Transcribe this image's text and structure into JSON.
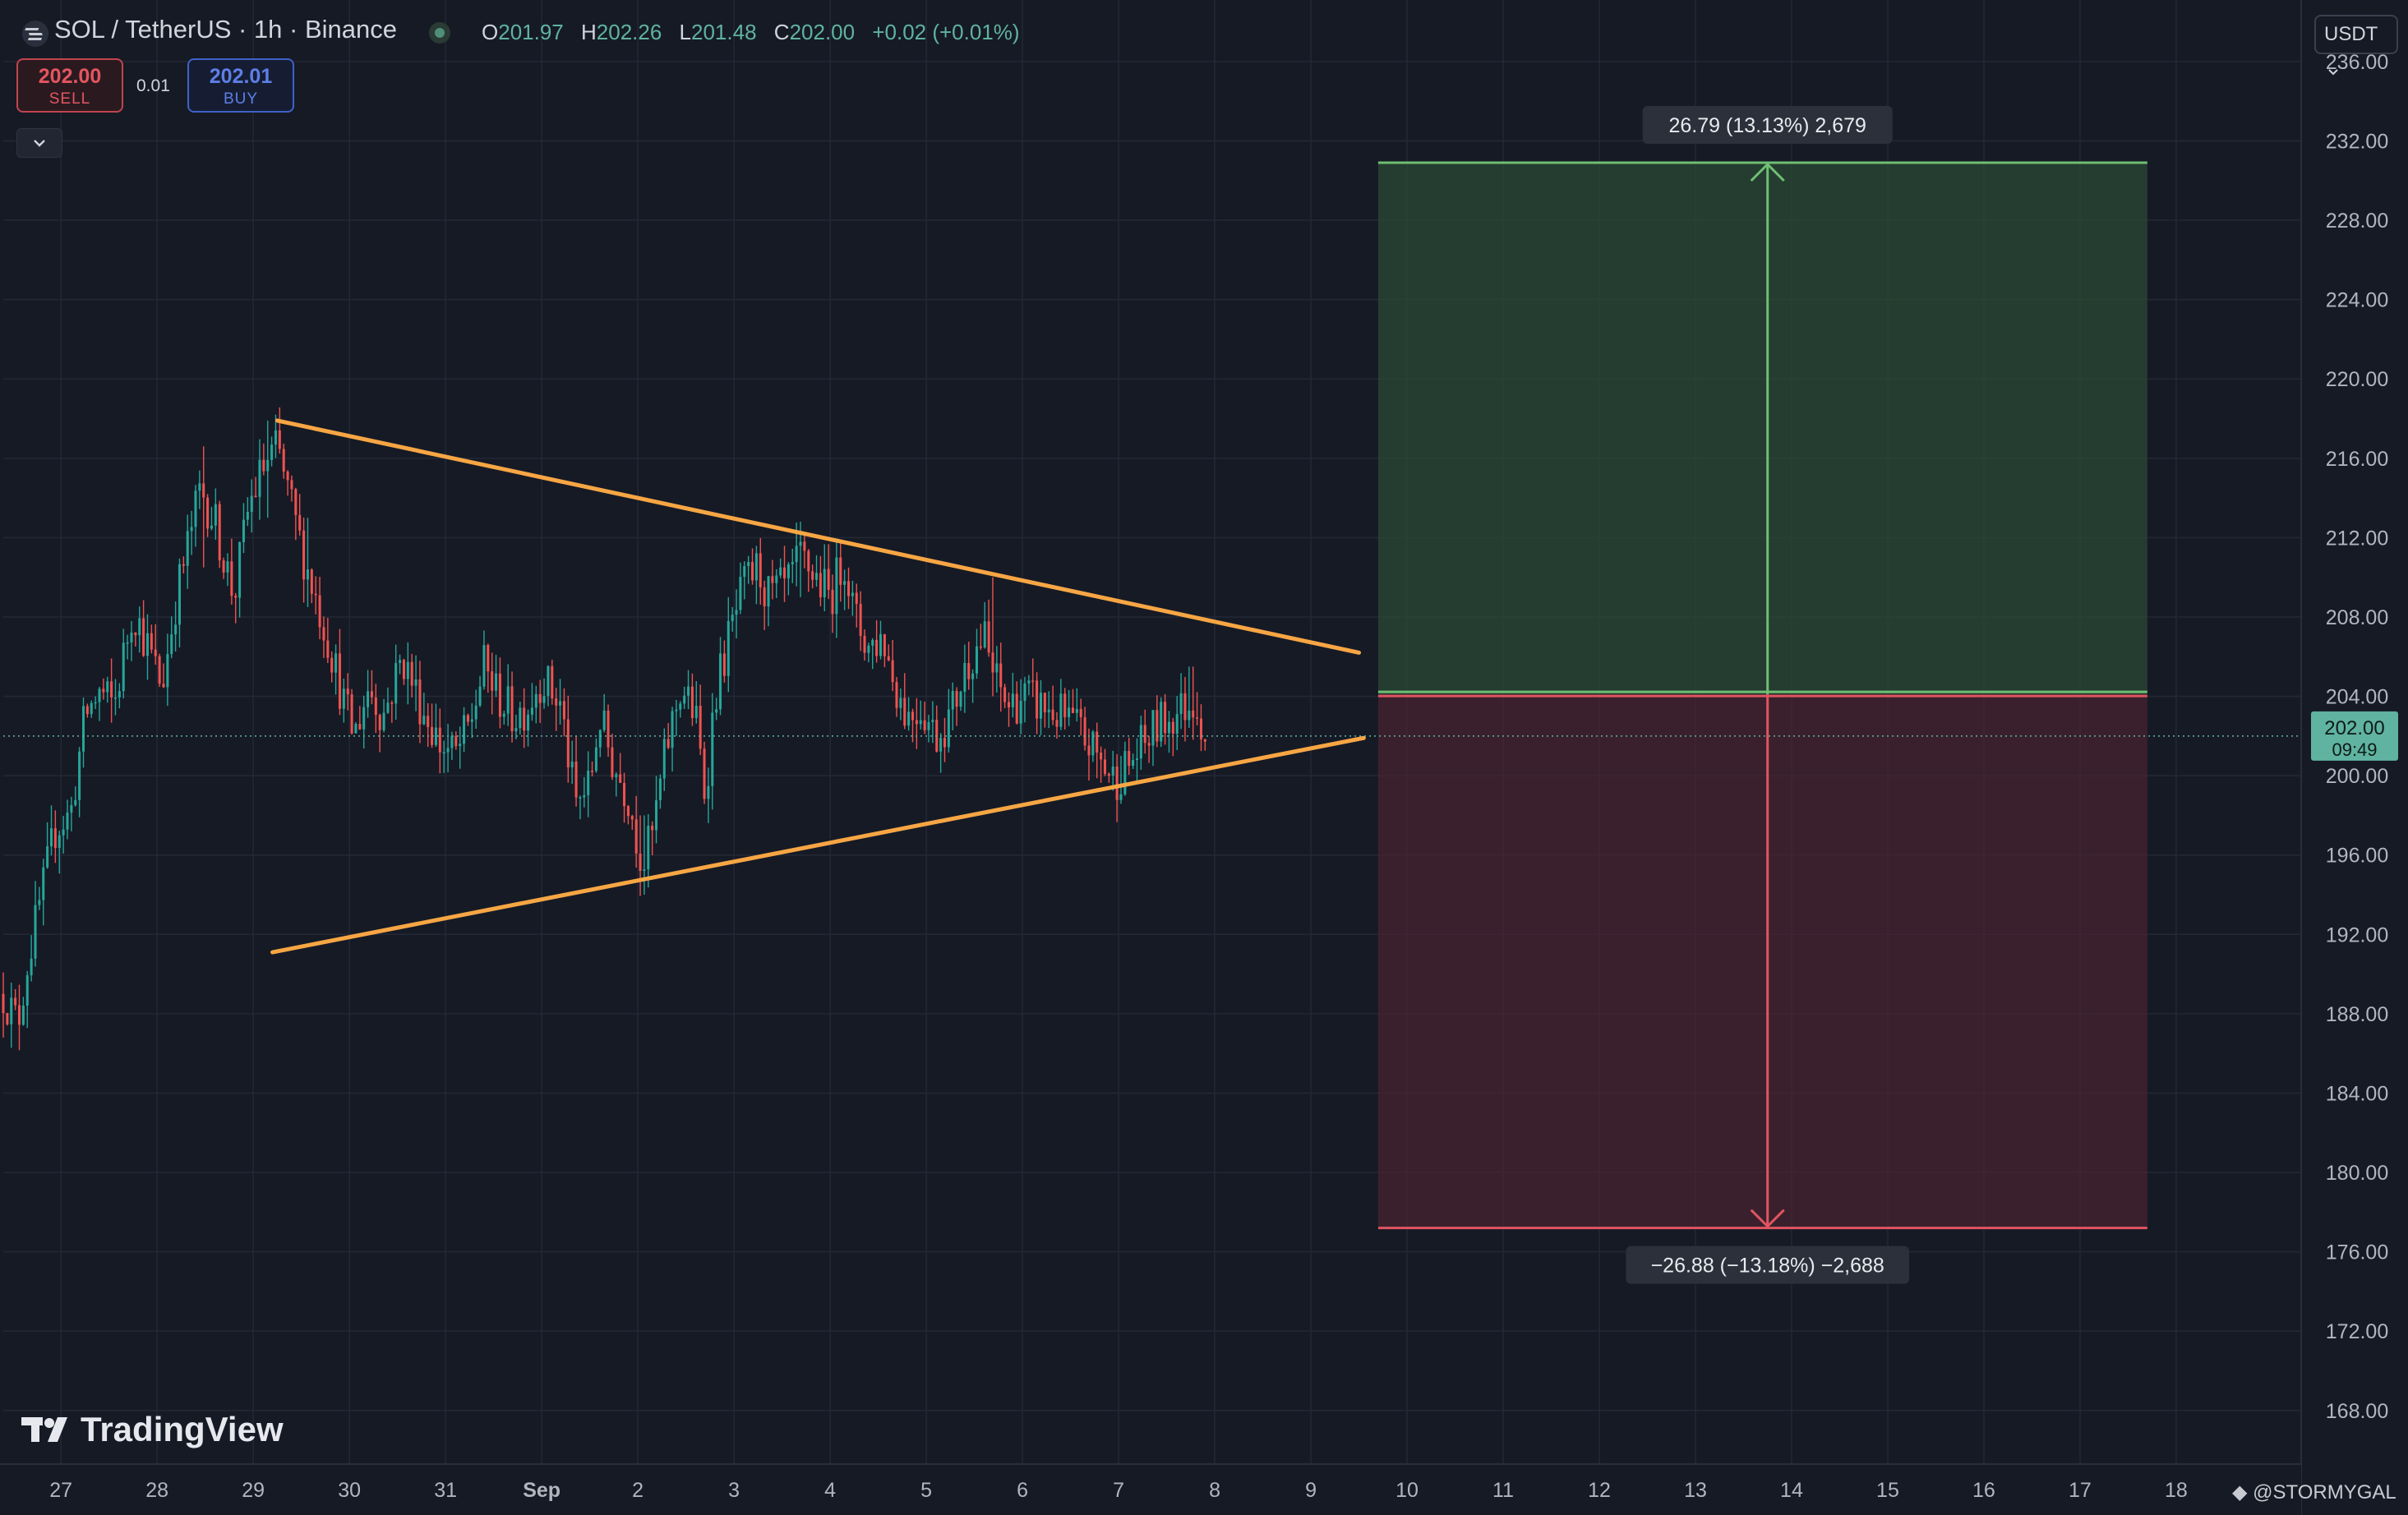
{
  "header": {
    "symbol_title": "SOL / TetherUS · 1h · Binance",
    "ohlc": [
      {
        "key": "O",
        "value": "201.97"
      },
      {
        "key": "H",
        "value": "202.26"
      },
      {
        "key": "L",
        "value": "201.48"
      },
      {
        "key": "C",
        "value": "202.00"
      }
    ],
    "change": "+0.02 (+0.01%)",
    "status_icon": "market-status-dot"
  },
  "trade": {
    "sell_price": "202.00",
    "sell_label": "SELL",
    "spread": "0.01",
    "buy_price": "202.01",
    "buy_label": "BUY",
    "collapse_icon": "chevron-down-icon"
  },
  "currency_selector": "USDT",
  "logo_text": "TradingView",
  "watermark": "@STORMYGAL",
  "colors": {
    "background": "#161a25",
    "candle_up": "#26a69a",
    "candle_down": "#ef5350",
    "trendline": "#f7a644",
    "target_zone": "#2b4a34",
    "stop_zone": "#4a2430",
    "price_tag": "#5fb3a0"
  },
  "chart_data": {
    "type": "candlestick",
    "symbol": "SOL/USDT",
    "interval": "1h",
    "y_axis": {
      "ticks": [
        "236.00",
        "232.00",
        "228.00",
        "224.00",
        "220.00",
        "216.00",
        "212.00",
        "208.00",
        "204.00",
        "200.00",
        "196.00",
        "192.00",
        "188.00",
        "184.00",
        "180.00",
        "176.00",
        "172.00",
        "168.00"
      ],
      "range": [
        165.3,
        239.1
      ]
    },
    "x_axis": {
      "ticks": [
        {
          "label": "27",
          "t": 0
        },
        {
          "label": "28",
          "t": 1
        },
        {
          "label": "29",
          "t": 2
        },
        {
          "label": "30",
          "t": 3
        },
        {
          "label": "31",
          "t": 4
        },
        {
          "label": "Sep",
          "t": 5,
          "bold": true
        },
        {
          "label": "2",
          "t": 6
        },
        {
          "label": "3",
          "t": 7
        },
        {
          "label": "4",
          "t": 8
        },
        {
          "label": "5",
          "t": 9
        },
        {
          "label": "6",
          "t": 10
        },
        {
          "label": "7",
          "t": 11
        },
        {
          "label": "8",
          "t": 12
        },
        {
          "label": "9",
          "t": 13
        },
        {
          "label": "10",
          "t": 14
        },
        {
          "label": "11",
          "t": 15
        },
        {
          "label": "12",
          "t": 16
        },
        {
          "label": "13",
          "t": 17
        },
        {
          "label": "14",
          "t": 18
        },
        {
          "label": "15",
          "t": 19
        },
        {
          "label": "16",
          "t": 20
        },
        {
          "label": "17",
          "t": 21
        },
        {
          "label": "18",
          "t": 22
        }
      ],
      "range": [
        -0.6,
        23.3
      ]
    },
    "price_path": [
      [
        -0.6,
        189.0
      ],
      [
        -0.45,
        187.5
      ],
      [
        -0.35,
        190.5
      ],
      [
        -0.2,
        194.0
      ],
      [
        -0.05,
        197.5
      ],
      [
        0.1,
        198.0
      ],
      [
        0.25,
        203.0
      ],
      [
        0.4,
        204.2
      ],
      [
        0.55,
        203.5
      ],
      [
        0.75,
        208.5
      ],
      [
        0.9,
        206.5
      ],
      [
        1.05,
        204.5
      ],
      [
        1.2,
        209.0
      ],
      [
        1.45,
        214.5
      ],
      [
        1.6,
        212.8
      ],
      [
        1.8,
        209.0
      ],
      [
        1.95,
        213.5
      ],
      [
        2.1,
        215.5
      ],
      [
        2.25,
        216.5
      ],
      [
        2.35,
        214.5
      ],
      [
        2.5,
        211.5
      ],
      [
        2.65,
        209.0
      ],
      [
        2.8,
        206.5
      ],
      [
        2.95,
        203.5
      ],
      [
        3.05,
        202.0
      ],
      [
        3.2,
        204.5
      ],
      [
        3.35,
        203.0
      ],
      [
        3.55,
        206.0
      ],
      [
        3.75,
        203.5
      ],
      [
        3.95,
        201.5
      ],
      [
        4.1,
        201.0
      ],
      [
        4.25,
        202.5
      ],
      [
        4.4,
        205.5
      ],
      [
        4.55,
        204.0
      ],
      [
        4.7,
        203.0
      ],
      [
        4.85,
        203.5
      ],
      [
        5.0,
        205.0
      ],
      [
        5.2,
        203.5
      ],
      [
        5.35,
        198.5
      ],
      [
        5.5,
        199.5
      ],
      [
        5.6,
        203.0
      ],
      [
        5.75,
        200.5
      ],
      [
        5.9,
        199.0
      ],
      [
        6.05,
        195.5
      ],
      [
        6.15,
        197.0
      ],
      [
        6.3,
        201.5
      ],
      [
        6.45,
        204.5
      ],
      [
        6.6,
        203.0
      ],
      [
        6.7,
        199.0
      ],
      [
        6.8,
        204.0
      ],
      [
        6.95,
        207.0
      ],
      [
        7.1,
        209.5
      ],
      [
        7.25,
        210.5
      ],
      [
        7.35,
        209.0
      ],
      [
        7.55,
        209.5
      ],
      [
        7.7,
        211.0
      ],
      [
        7.85,
        210.0
      ],
      [
        8.0,
        209.0
      ],
      [
        8.15,
        211.0
      ],
      [
        8.25,
        208.0
      ],
      [
        8.4,
        206.5
      ],
      [
        8.55,
        207.0
      ],
      [
        8.65,
        205.0
      ],
      [
        8.8,
        203.0
      ],
      [
        8.95,
        203.5
      ],
      [
        9.1,
        202.0
      ],
      [
        9.25,
        203.0
      ],
      [
        9.45,
        206.0
      ],
      [
        9.6,
        207.0
      ],
      [
        9.7,
        205.0
      ],
      [
        9.85,
        203.5
      ],
      [
        10.0,
        204.0
      ],
      [
        10.2,
        203.5
      ],
      [
        10.4,
        203.0
      ],
      [
        10.55,
        202.5
      ],
      [
        10.7,
        201.5
      ],
      [
        10.85,
        200.5
      ],
      [
        10.95,
        199.8
      ],
      [
        11.1,
        200.5
      ],
      [
        11.25,
        201.5
      ],
      [
        11.4,
        202.5
      ],
      [
        11.55,
        203.0
      ],
      [
        11.7,
        203.5
      ],
      [
        11.8,
        204.0
      ],
      [
        11.9,
        202.0
      ]
    ],
    "spikes": [
      {
        "t": 2.15,
        "high": 217.9,
        "low": 213.0
      },
      {
        "t": 1.48,
        "high": 216.6,
        "low": 210.5
      },
      {
        "t": 2.55,
        "high": 213.0,
        "low": 208.5
      },
      {
        "t": 7.7,
        "high": 212.8,
        "low": 209.0
      },
      {
        "t": 9.7,
        "high": 210.0,
        "low": 204.0
      },
      {
        "t": 6.05,
        "high": 198.0,
        "low": 194.0
      },
      {
        "t": 11.0,
        "high": 201.0,
        "low": 199.2
      },
      {
        "t": 11.75,
        "high": 205.5,
        "low": 202.5
      }
    ],
    "trendlines": [
      {
        "name": "upper",
        "from": [
          2.25,
          217.9
        ],
        "to": [
          13.5,
          206.2
        ]
      },
      {
        "name": "lower",
        "from": [
          2.2,
          191.1
        ],
        "to": [
          13.55,
          201.9
        ]
      }
    ],
    "long_position": {
      "t_start": 13.7,
      "t_end": 21.7,
      "entry": 204.1,
      "target": 230.9,
      "stop": 177.2,
      "arrow_t": 17.75,
      "target_label": "26.79 (13.13%) 2,679",
      "stop_label": "−26.88 (−13.18%) −2,688"
    },
    "last_price": {
      "value": 202.0,
      "label": "202.00",
      "countdown": "09:49"
    }
  }
}
